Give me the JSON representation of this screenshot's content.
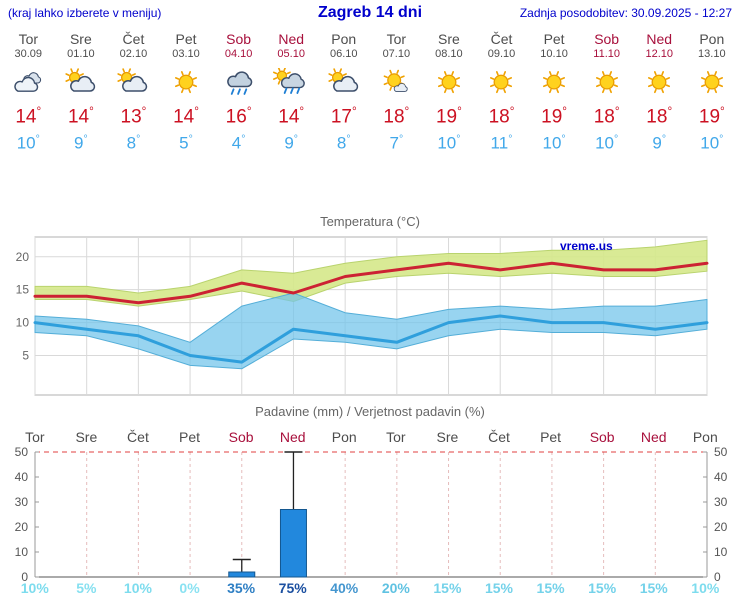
{
  "header": {
    "left_note": "(kraj lahko izberete v meniju)",
    "title": "Zagreb 14 dni",
    "updated": "Zadnja posodobitev: 30.09.2025 - 12:27"
  },
  "colors": {
    "header_blue": "#0000cc",
    "tmax_red": "#cc1122",
    "tmin_blue": "#41a8ea",
    "weekday": "#4d4d4d",
    "weekend": "#a8103c",
    "bar_fill": "#2288dd",
    "bar_stroke": "#14578f",
    "watermark_blue": "#0000cc"
  },
  "days": [
    {
      "name": "Tor",
      "date": "30.09",
      "weekend": false,
      "icon": "cloudy",
      "tmax": "14",
      "tmin": "10",
      "precip_prob": "10%",
      "prob_color": "#7ddcee"
    },
    {
      "name": "Sre",
      "date": "01.10",
      "weekend": false,
      "icon": "partly-cloudy",
      "tmax": "14",
      "tmin": "9",
      "precip_prob": "5%",
      "prob_color": "#86e0f0"
    },
    {
      "name": "Čet",
      "date": "02.10",
      "weekend": false,
      "icon": "partly-cloudy",
      "tmax": "13",
      "tmin": "8",
      "precip_prob": "10%",
      "prob_color": "#7ddcee"
    },
    {
      "name": "Pet",
      "date": "03.10",
      "weekend": false,
      "icon": "sunny",
      "tmax": "14",
      "tmin": "5",
      "precip_prob": "0%",
      "prob_color": "#8ae2f2"
    },
    {
      "name": "Sob",
      "date": "04.10",
      "weekend": true,
      "icon": "rain",
      "tmax": "16",
      "tmin": "4",
      "precip_prob": "35%",
      "prob_color": "#2e7fc4"
    },
    {
      "name": "Ned",
      "date": "05.10",
      "weekend": true,
      "icon": "rain-sun",
      "tmax": "14",
      "tmin": "9",
      "precip_prob": "75%",
      "prob_color": "#1b4fa0"
    },
    {
      "name": "Pon",
      "date": "06.10",
      "weekend": false,
      "icon": "partly-cloudy",
      "tmax": "17",
      "tmin": "8",
      "precip_prob": "40%",
      "prob_color": "#4496cf"
    },
    {
      "name": "Tor",
      "date": "07.10",
      "weekend": false,
      "icon": "mostly-sunny",
      "tmax": "18",
      "tmin": "7",
      "precip_prob": "20%",
      "prob_color": "#5fc2e2"
    },
    {
      "name": "Sre",
      "date": "08.10",
      "weekend": false,
      "icon": "sunny",
      "tmax": "19",
      "tmin": "10",
      "precip_prob": "15%",
      "prob_color": "#74d2ea"
    },
    {
      "name": "Čet",
      "date": "09.10",
      "weekend": false,
      "icon": "sunny",
      "tmax": "18",
      "tmin": "11",
      "precip_prob": "15%",
      "prob_color": "#74d2ea"
    },
    {
      "name": "Pet",
      "date": "10.10",
      "weekend": false,
      "icon": "sunny",
      "tmax": "19",
      "tmin": "10",
      "precip_prob": "15%",
      "prob_color": "#74d2ea"
    },
    {
      "name": "Sob",
      "date": "11.10",
      "weekend": true,
      "icon": "sunny",
      "tmax": "18",
      "tmin": "10",
      "precip_prob": "15%",
      "prob_color": "#74d2ea"
    },
    {
      "name": "Ned",
      "date": "12.10",
      "weekend": true,
      "icon": "sunny",
      "tmax": "18",
      "tmin": "9",
      "precip_prob": "15%",
      "prob_color": "#74d2ea"
    },
    {
      "name": "Pon",
      "date": "13.10",
      "weekend": false,
      "icon": "sunny",
      "tmax": "19",
      "tmin": "10",
      "precip_prob": "10%",
      "prob_color": "#7ddcee"
    }
  ],
  "chart_data": [
    {
      "type": "line",
      "title": "Temperatura (°C)",
      "watermark": "vreme.us",
      "categories": [
        "Tor",
        "Sre",
        "Čet",
        "Pet",
        "Sob",
        "Ned",
        "Pon",
        "Tor",
        "Sre",
        "Čet",
        "Pet",
        "Sob",
        "Ned",
        "Pon"
      ],
      "ylim": [
        -1,
        23
      ],
      "yticks": [
        5,
        10,
        15,
        20
      ],
      "grid": true,
      "legend": "none",
      "series": [
        {
          "name": "tmax",
          "color": "#cc2233",
          "values": [
            14,
            14,
            13,
            14,
            16,
            14.5,
            17,
            18,
            19,
            18,
            19,
            18,
            18,
            19
          ]
        },
        {
          "name": "tmin",
          "color": "#2f9fdc",
          "values": [
            10,
            9,
            8,
            5,
            4,
            9,
            8,
            7,
            10,
            11,
            10,
            10,
            9,
            10
          ]
        }
      ],
      "bands": [
        {
          "name": "tmax-range",
          "fill": "rgba(213,232,138,0.9)",
          "edge": "#b9d36e",
          "upper": [
            15.5,
            15.5,
            14.5,
            15.5,
            18,
            17.5,
            19,
            20,
            20.5,
            20.5,
            21,
            21,
            21.5,
            22.5
          ],
          "lower": [
            13.5,
            13.5,
            12.5,
            13.5,
            14.8,
            13.2,
            16,
            17,
            17.5,
            17,
            17.5,
            17,
            17,
            17.8
          ]
        },
        {
          "name": "tmin-range",
          "fill": "rgba(112,196,234,0.72)",
          "edge": "#54aed8",
          "upper": [
            11,
            10.5,
            9.5,
            7,
            12.5,
            14.5,
            11.5,
            10.5,
            12,
            12.5,
            12,
            12.5,
            12.5,
            13.5
          ],
          "lower": [
            8.5,
            8,
            6,
            3.5,
            3,
            7.5,
            7,
            6,
            8,
            9,
            8.5,
            8.5,
            8,
            9
          ]
        }
      ]
    },
    {
      "type": "bar",
      "title": "Padavine (mm) / Verjetnost padavin (%)",
      "categories": [
        "Tor",
        "Sre",
        "Čet",
        "Pet",
        "Sob",
        "Ned",
        "Pon",
        "Tor",
        "Sre",
        "Čet",
        "Pet",
        "Sob",
        "Ned",
        "Pon"
      ],
      "ylim": [
        0,
        50
      ],
      "yticks": [
        0,
        10,
        20,
        30,
        40,
        50
      ],
      "values": [
        0,
        0,
        0,
        0,
        2,
        27,
        0,
        0,
        0,
        0,
        0,
        0,
        0,
        0
      ],
      "whisker_high": [
        0,
        0,
        0,
        0,
        7,
        50,
        0,
        0,
        0,
        0,
        0,
        0,
        0,
        0
      ],
      "probabilities": [
        "10%",
        "5%",
        "10%",
        "0%",
        "35%",
        "75%",
        "40%",
        "20%",
        "15%",
        "15%",
        "15%",
        "15%",
        "15%",
        "10%"
      ]
    }
  ]
}
